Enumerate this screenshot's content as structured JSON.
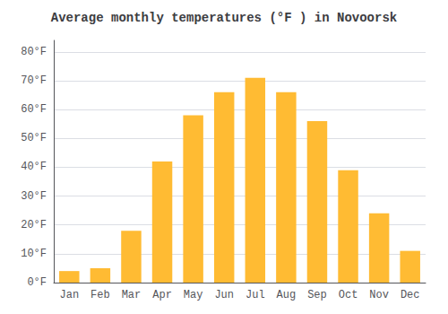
{
  "chart_data": {
    "type": "bar",
    "title": "Average monthly temperatures (°F ) in Novoorsk",
    "categories": [
      "Jan",
      "Feb",
      "Mar",
      "Apr",
      "May",
      "Jun",
      "Jul",
      "Aug",
      "Sep",
      "Oct",
      "Nov",
      "Dec"
    ],
    "values": [
      4,
      5,
      18,
      42,
      58,
      66,
      71,
      66,
      56,
      39,
      24,
      11
    ],
    "color": "#FFBB33",
    "ylim": [
      0,
      84
    ],
    "yticks": [
      {
        "value": 0,
        "label": "0°F"
      },
      {
        "value": 10,
        "label": "10°F"
      },
      {
        "value": 20,
        "label": "20°F"
      },
      {
        "value": 30,
        "label": "30°F"
      },
      {
        "value": 40,
        "label": "40°F"
      },
      {
        "value": 50,
        "label": "50°F"
      },
      {
        "value": 60,
        "label": "60°F"
      },
      {
        "value": 70,
        "label": "70°F"
      },
      {
        "value": 80,
        "label": "80°F"
      }
    ],
    "grid": true
  }
}
